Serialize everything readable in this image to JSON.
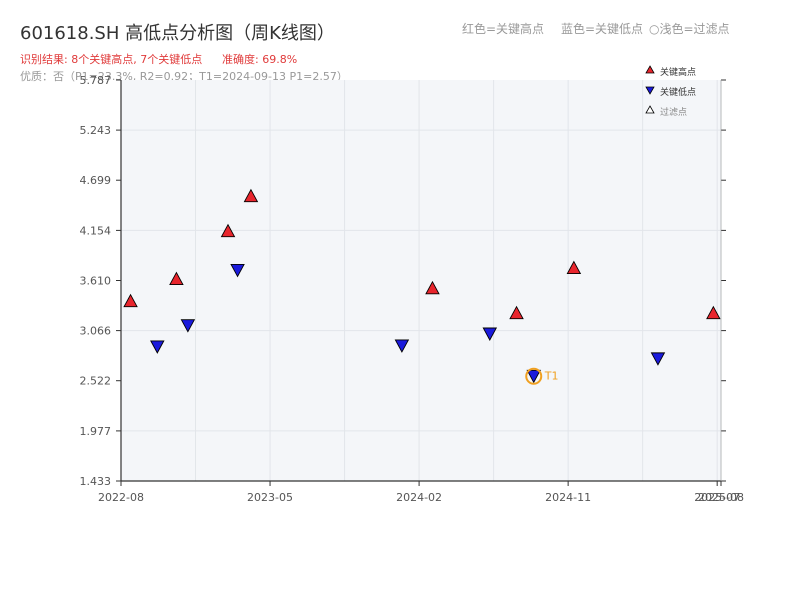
{
  "chart_data": {
    "type": "candlestick",
    "title": "601618.SH 高低点分析图（周K线图）",
    "subtitle_result": "识别结果: 8个关键高点, 7个关键低点",
    "subtitle_accuracy": "准确度: 69.8%",
    "subtitle_quality": "优质：否（P1=23.3%, R2=0.92；T1=2024-09-13 P1=2.57）",
    "header_notes": [
      "红色=关键高点",
      "蓝色=关键低点",
      "○浅色=过滤点"
    ],
    "legend": [
      "关键高点",
      "关键低点",
      "过滤点"
    ],
    "ylim": [
      1.433,
      5.787
    ],
    "yticks": [
      "1.433",
      "1.977",
      "2.522",
      "3.066",
      "3.610",
      "4.154",
      "4.699",
      "5.243",
      "5.787"
    ],
    "xlim": [
      0,
      157
    ],
    "xticks": [
      {
        "pos": 0,
        "label": "2022-08"
      },
      {
        "pos": 39,
        "label": "2023-05"
      },
      {
        "pos": 78,
        "label": "2024-02"
      },
      {
        "pos": 117,
        "label": "2024-11"
      },
      {
        "pos": 156,
        "label": "2025-07"
      },
      {
        "pos": 157,
        "label": "2025-08"
      }
    ],
    "grid": true,
    "legend_position": "top-right",
    "colors": {
      "up": "#e8252d",
      "down": "#1a8a3a",
      "high_marker": "#e8252d",
      "low_marker": "#1a1adc",
      "t1_ring": "#f0a020",
      "plot_bg": "#f4f6f9",
      "grid": "#e2e5ea"
    },
    "ohlc": [],
    "key_highs": [
      {
        "x": 2.5,
        "y": 3.38
      },
      {
        "x": 14.5,
        "y": 3.62
      },
      {
        "x": 28,
        "y": 4.14
      },
      {
        "x": 34,
        "y": 4.52
      },
      {
        "x": 81.5,
        "y": 3.52
      },
      {
        "x": 103.5,
        "y": 3.25
      },
      {
        "x": 118.5,
        "y": 3.74
      },
      {
        "x": 155,
        "y": 3.25
      }
    ],
    "key_lows": [
      {
        "x": 9.5,
        "y": 2.9
      },
      {
        "x": 17.5,
        "y": 3.13
      },
      {
        "x": 30.5,
        "y": 3.73
      },
      {
        "x": 73.5,
        "y": 2.91
      },
      {
        "x": 96.5,
        "y": 3.04
      },
      {
        "x": 108,
        "y": 2.58
      },
      {
        "x": 140.5,
        "y": 2.77
      }
    ],
    "t1_point": {
      "x": 108,
      "y": 2.57,
      "label": "T1"
    }
  }
}
